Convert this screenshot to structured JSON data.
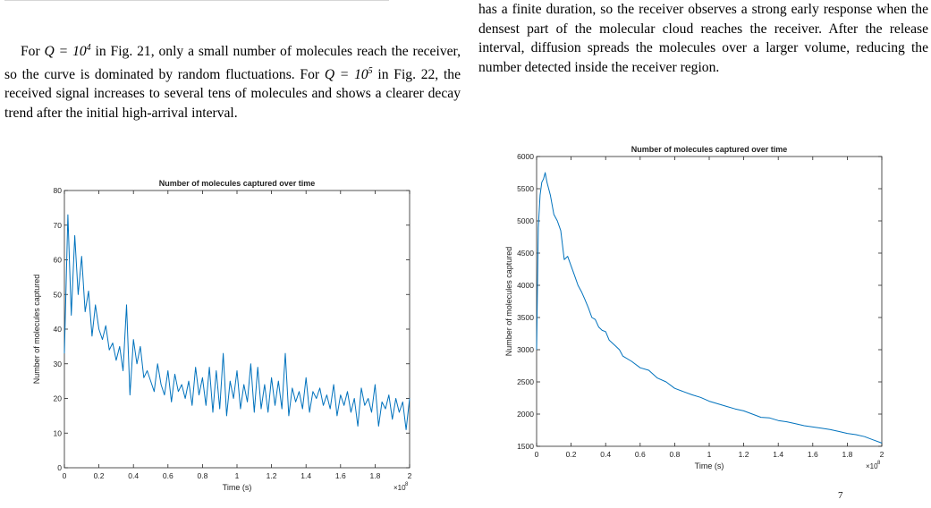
{
  "left_column": {
    "prefix": "For ",
    "q1": "Q = 10",
    "q1_exp": "4",
    "mid1": " in Fig. 21, only a small number of molecules reach the receiver, so the curve is dominated by random fluctuations. For ",
    "q2": "Q = 10",
    "q2_exp": "5",
    "mid2": " in Fig. 22, the received signal increases to several tens of molecules and shows a clearer decay trend after the initial high-arrival interval."
  },
  "right_column": {
    "paragraph": "has a finite duration, so the receiver observes a strong early response when the densest part of the molecular cloud reaches the receiver. After the release interval, diffusion spreads the molecules over a larger volume, reducing the number detected inside the receiver region."
  },
  "caption_fragment": "7",
  "chart_data": [
    {
      "type": "line",
      "title": "Number of molecules captured over time",
      "xlabel": "Time (s)",
      "ylabel": "Number of molecules captured",
      "x_multiplier_label": "×10",
      "x_multiplier_exp": "8",
      "xlim": [
        0,
        2
      ],
      "ylim": [
        0,
        80
      ],
      "xticks": [
        "0",
        "0.2",
        "0.4",
        "0.6",
        "0.8",
        "1",
        "1.2",
        "1.4",
        "1.6",
        "1.8",
        "2"
      ],
      "yticks": [
        "0",
        "10",
        "20",
        "30",
        "40",
        "50",
        "60",
        "70",
        "80"
      ],
      "line_color": "#0072BD",
      "series": [
        {
          "x": [
            0.0,
            0.02,
            0.04,
            0.06,
            0.08,
            0.1,
            0.12,
            0.14,
            0.16,
            0.18,
            0.2,
            0.22,
            0.24,
            0.26,
            0.28,
            0.3,
            0.32,
            0.34,
            0.36,
            0.38,
            0.4,
            0.42,
            0.44,
            0.46,
            0.48,
            0.5,
            0.52,
            0.54,
            0.56,
            0.58,
            0.6,
            0.62,
            0.64,
            0.66,
            0.68,
            0.7,
            0.72,
            0.74,
            0.76,
            0.78,
            0.8,
            0.82,
            0.84,
            0.86,
            0.88,
            0.9,
            0.92,
            0.94,
            0.96,
            0.98,
            1.0,
            1.02,
            1.04,
            1.06,
            1.08,
            1.1,
            1.12,
            1.14,
            1.16,
            1.18,
            1.2,
            1.22,
            1.24,
            1.26,
            1.28,
            1.3,
            1.32,
            1.34,
            1.36,
            1.38,
            1.4,
            1.42,
            1.44,
            1.46,
            1.48,
            1.5,
            1.52,
            1.54,
            1.56,
            1.58,
            1.6,
            1.62,
            1.64,
            1.66,
            1.68,
            1.7,
            1.72,
            1.74,
            1.76,
            1.78,
            1.8,
            1.82,
            1.84,
            1.86,
            1.88,
            1.9,
            1.92,
            1.94,
            1.96,
            1.98,
            2.0
          ],
          "values": [
            33,
            73,
            44,
            67,
            50,
            61,
            45,
            51,
            38,
            47,
            40,
            37,
            41,
            34,
            36,
            31,
            35,
            28,
            47,
            21,
            37,
            30,
            35,
            26,
            28,
            25,
            22,
            30,
            24,
            21,
            28,
            19,
            27,
            22,
            24,
            20,
            25,
            18,
            29,
            21,
            26,
            18,
            29,
            16,
            28,
            17,
            33,
            15,
            25,
            20,
            28,
            17,
            24,
            19,
            30,
            16,
            29,
            17,
            24,
            16,
            26,
            18,
            25,
            17,
            33,
            15,
            23,
            19,
            22,
            17,
            26,
            16,
            22,
            20,
            23,
            18,
            21,
            17,
            24,
            15,
            21,
            18,
            22,
            16,
            20,
            12,
            23,
            18,
            20,
            16,
            24,
            12,
            19,
            17,
            21,
            14,
            20,
            16,
            19,
            11,
            20
          ]
        }
      ]
    },
    {
      "type": "line",
      "title": "Number of molecules captured over time",
      "xlabel": "Time (s)",
      "ylabel": "Number of molecules captured",
      "x_multiplier_label": "×10",
      "x_multiplier_exp": "8",
      "xlim": [
        0,
        2
      ],
      "ylim": [
        1500,
        6000
      ],
      "xticks": [
        "0",
        "0.2",
        "0.4",
        "0.6",
        "0.8",
        "1",
        "1.2",
        "1.4",
        "1.6",
        "1.8",
        "2"
      ],
      "yticks": [
        "1500",
        "2000",
        "2500",
        "3000",
        "3500",
        "4000",
        "4500",
        "5000",
        "5500",
        "6000"
      ],
      "line_color": "#0072BD",
      "series": [
        {
          "x": [
            0.0,
            0.01,
            0.02,
            0.03,
            0.04,
            0.05,
            0.06,
            0.07,
            0.08,
            0.1,
            0.12,
            0.14,
            0.16,
            0.18,
            0.2,
            0.22,
            0.24,
            0.26,
            0.28,
            0.3,
            0.32,
            0.34,
            0.36,
            0.38,
            0.4,
            0.42,
            0.44,
            0.46,
            0.48,
            0.5,
            0.55,
            0.6,
            0.65,
            0.7,
            0.75,
            0.8,
            0.85,
            0.9,
            0.95,
            1.0,
            1.05,
            1.1,
            1.15,
            1.2,
            1.25,
            1.3,
            1.35,
            1.4,
            1.45,
            1.5,
            1.55,
            1.6,
            1.65,
            1.7,
            1.75,
            1.8,
            1.85,
            1.9,
            1.95,
            2.0
          ],
          "values": [
            3000,
            4900,
            5400,
            5600,
            5650,
            5750,
            5600,
            5500,
            5400,
            5100,
            5000,
            4850,
            4400,
            4450,
            4300,
            4150,
            4000,
            3900,
            3780,
            3650,
            3500,
            3470,
            3350,
            3300,
            3280,
            3150,
            3100,
            3050,
            3000,
            2900,
            2820,
            2720,
            2680,
            2560,
            2500,
            2400,
            2350,
            2300,
            2260,
            2200,
            2160,
            2120,
            2080,
            2050,
            2000,
            1950,
            1940,
            1900,
            1880,
            1850,
            1820,
            1800,
            1780,
            1760,
            1730,
            1700,
            1680,
            1650,
            1600,
            1550
          ]
        }
      ]
    }
  ]
}
